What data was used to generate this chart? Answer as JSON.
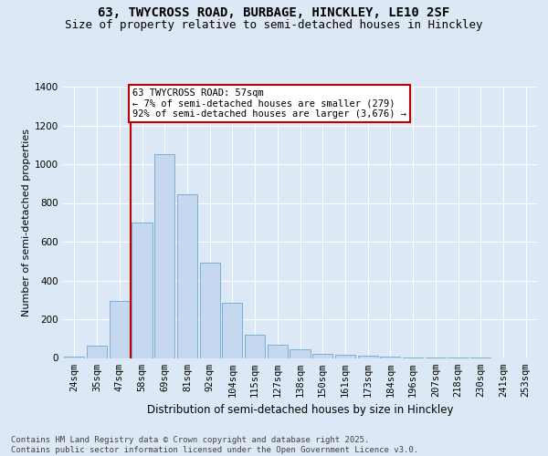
{
  "title1": "63, TWYCROSS ROAD, BURBAGE, HINCKLEY, LE10 2SF",
  "title2": "Size of property relative to semi-detached houses in Hinckley",
  "xlabel": "Distribution of semi-detached houses by size in Hinckley",
  "ylabel": "Number of semi-detached properties",
  "categories": [
    "24sqm",
    "35sqm",
    "47sqm",
    "58sqm",
    "69sqm",
    "81sqm",
    "92sqm",
    "104sqm",
    "115sqm",
    "127sqm",
    "138sqm",
    "150sqm",
    "161sqm",
    "173sqm",
    "184sqm",
    "196sqm",
    "207sqm",
    "218sqm",
    "230sqm",
    "241sqm",
    "253sqm"
  ],
  "values": [
    5,
    65,
    295,
    700,
    1050,
    845,
    490,
    285,
    120,
    70,
    45,
    20,
    18,
    10,
    8,
    3,
    2,
    1,
    1,
    0,
    0
  ],
  "bar_color": "#c5d8f0",
  "bar_edge_color": "#7bafd4",
  "vline_color": "#c00000",
  "annotation_text": "63 TWYCROSS ROAD: 57sqm\n← 7% of semi-detached houses are smaller (279)\n92% of semi-detached houses are larger (3,676) →",
  "annotation_box_color": "#c00000",
  "ylim": [
    0,
    1400
  ],
  "yticks": [
    0,
    200,
    400,
    600,
    800,
    1000,
    1200,
    1400
  ],
  "background_color": "#dce8f5",
  "footer_text": "Contains HM Land Registry data © Crown copyright and database right 2025.\nContains public sector information licensed under the Open Government Licence v3.0.",
  "title1_fontsize": 10,
  "title2_fontsize": 9,
  "xlabel_fontsize": 8.5,
  "ylabel_fontsize": 8,
  "tick_fontsize": 7.5,
  "footer_fontsize": 6.5,
  "annot_fontsize": 7.5
}
